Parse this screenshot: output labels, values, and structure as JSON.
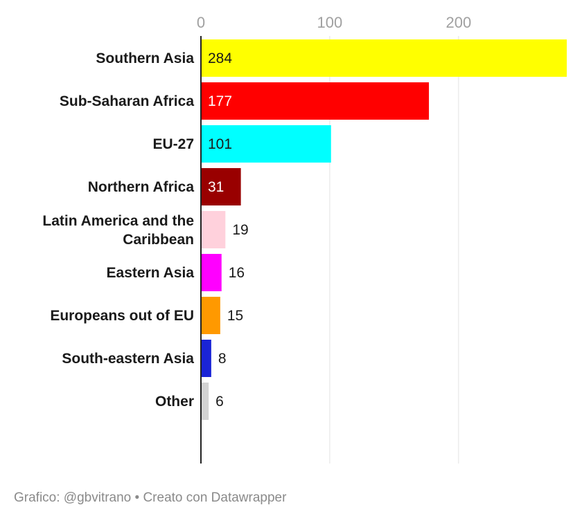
{
  "chart_data": {
    "type": "bar",
    "orientation": "horizontal",
    "categories": [
      "Southern Asia",
      "Sub-Saharan Africa",
      "EU-27",
      "Northern Africa",
      "Latin America and the Caribbean",
      "Eastern Asia",
      "Europeans out of EU",
      "South-eastern Asia",
      "Other"
    ],
    "values": [
      284,
      177,
      101,
      31,
      19,
      16,
      15,
      8,
      6
    ],
    "colors": [
      "#ffff00",
      "#ff0000",
      "#00ffff",
      "#990000",
      "#ffd1dc",
      "#ff00ff",
      "#ff9900",
      "#1a24d6",
      "#d3d3d3"
    ],
    "value_label_colors": [
      "#1a1a1a",
      "#ffffff",
      "#1a1a1a",
      "#ffffff",
      "#1a1a1a",
      "#1a1a1a",
      "#1a1a1a",
      "#1a1a1a",
      "#1a1a1a"
    ],
    "xticks": [
      0,
      100,
      200
    ],
    "xlim": [
      0,
      284
    ],
    "grid": true,
    "title": "",
    "xlabel": "",
    "ylabel": ""
  },
  "footer": {
    "credit": "Grafico: @gbvitrano • Creato con Datawrapper"
  }
}
